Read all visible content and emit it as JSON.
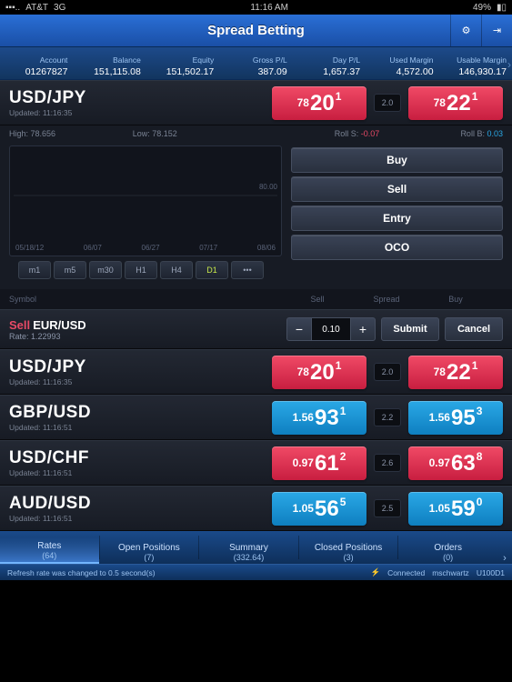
{
  "status": {
    "carrier": "AT&T",
    "net": "3G",
    "time": "11:16 AM",
    "battery": "49%"
  },
  "header": {
    "title": "Spread Betting"
  },
  "account": {
    "cols": [
      {
        "label": "Account",
        "value": "01267827"
      },
      {
        "label": "Balance",
        "value": "151,115.08"
      },
      {
        "label": "Equity",
        "value": "151,502.17"
      },
      {
        "label": "Gross P/L",
        "value": "387.09"
      },
      {
        "label": "Day P/L",
        "value": "1,657.37"
      },
      {
        "label": "Used Margin",
        "value": "4,572.00"
      },
      {
        "label": "Usable Margin",
        "value": "146,930.17"
      }
    ]
  },
  "featured": {
    "symbol": "USD/JPY",
    "updated": "Updated: 11:16:35",
    "sell": {
      "small": "78",
      "large": "20",
      "sup": "1",
      "color": "red"
    },
    "spread": "2.0",
    "buy": {
      "small": "78",
      "large": "22",
      "sup": "1",
      "color": "red"
    },
    "high": "High: 78.656",
    "low": "Low: 78.152",
    "rollS": "-0.07",
    "rollSLabel": "Roll S:",
    "rollB": "0.03",
    "rollBLabel": "Roll B:",
    "sideLabel": "80.00",
    "dates": [
      "05/18/12",
      "06/07",
      "06/27",
      "07/17",
      "08/06"
    ],
    "timeframes": [
      "m1",
      "m5",
      "m30",
      "H1",
      "H4",
      "D1",
      "•••"
    ],
    "tfActive": 5,
    "actions": [
      "Buy",
      "Sell",
      "Entry",
      "OCO"
    ],
    "candles": [
      {
        "x": 4,
        "wT": 10,
        "wH": 55,
        "bT": 15,
        "bH": 35,
        "c": "pink"
      },
      {
        "x": 9,
        "wT": 15,
        "wH": 50,
        "bT": 20,
        "bH": 20,
        "c": "blue"
      },
      {
        "x": 14,
        "wT": 8,
        "wH": 60,
        "bT": 12,
        "bH": 40,
        "c": "pink"
      },
      {
        "x": 19,
        "wT": 12,
        "wH": 45,
        "bT": 18,
        "bH": 25,
        "c": "pink"
      },
      {
        "x": 24,
        "wT": 5,
        "wH": 55,
        "bT": 10,
        "bH": 30,
        "c": "blue"
      },
      {
        "x": 29,
        "wT": 18,
        "wH": 50,
        "bT": 25,
        "bH": 28,
        "c": "pink"
      },
      {
        "x": 34,
        "wT": 22,
        "wH": 55,
        "bT": 30,
        "bH": 35,
        "c": "pink"
      },
      {
        "x": 39,
        "wT": 15,
        "wH": 45,
        "bT": 22,
        "bH": 20,
        "c": "blue"
      },
      {
        "x": 44,
        "wT": 28,
        "wH": 50,
        "bT": 35,
        "bH": 30,
        "c": "pink"
      },
      {
        "x": 49,
        "wT": 20,
        "wH": 48,
        "bT": 28,
        "bH": 22,
        "c": "blue"
      },
      {
        "x": 54,
        "wT": 25,
        "wH": 52,
        "bT": 32,
        "bH": 28,
        "c": "pink"
      },
      {
        "x": 59,
        "wT": 30,
        "wH": 45,
        "bT": 36,
        "bH": 18,
        "c": "blue"
      },
      {
        "x": 64,
        "wT": 35,
        "wH": 50,
        "bT": 42,
        "bH": 30,
        "c": "pink"
      },
      {
        "x": 69,
        "wT": 40,
        "wH": 45,
        "bT": 46,
        "bH": 25,
        "c": "pink"
      },
      {
        "x": 74,
        "wT": 32,
        "wH": 48,
        "bT": 40,
        "bH": 22,
        "c": "blue"
      },
      {
        "x": 79,
        "wT": 38,
        "wH": 44,
        "bT": 44,
        "bH": 20,
        "c": "pink"
      },
      {
        "x": 84,
        "wT": 45,
        "wH": 40,
        "bT": 50,
        "bH": 18,
        "c": "blue"
      },
      {
        "x": 89,
        "wT": 42,
        "wH": 45,
        "bT": 48,
        "bH": 24,
        "c": "pink"
      },
      {
        "x": 94,
        "wT": 50,
        "wH": 38,
        "bT": 55,
        "bH": 16,
        "c": "pink"
      }
    ]
  },
  "listHeader": {
    "symbol": "Symbol",
    "sell": "Sell",
    "spread": "Spread",
    "buy": "Buy"
  },
  "order": {
    "side": "Sell",
    "symbol": "EUR/USD",
    "rateLabel": "Rate:",
    "rate": "1.22993",
    "qty": "0.10",
    "submit": "Submit",
    "cancel": "Cancel"
  },
  "rows": [
    {
      "symbol": "USD/JPY",
      "updated": "Updated: 11:16:35",
      "sell": {
        "small": "78",
        "large": "20",
        "sup": "1"
      },
      "spread": "2.0",
      "buy": {
        "small": "78",
        "large": "22",
        "sup": "1"
      },
      "color": "red"
    },
    {
      "symbol": "GBP/USD",
      "updated": "Updated: 11:16:51",
      "sell": {
        "small": "1.56",
        "large": "93",
        "sup": "1"
      },
      "spread": "2.2",
      "buy": {
        "small": "1.56",
        "large": "95",
        "sup": "3"
      },
      "color": "blue"
    },
    {
      "symbol": "USD/CHF",
      "updated": "Updated: 11:16:51",
      "sell": {
        "small": "0.97",
        "large": "61",
        "sup": "2"
      },
      "spread": "2.6",
      "buy": {
        "small": "0.97",
        "large": "63",
        "sup": "8"
      },
      "color": "red"
    },
    {
      "symbol": "AUD/USD",
      "updated": "Updated: 11:16:51",
      "sell": {
        "small": "1.05",
        "large": "56",
        "sup": "5"
      },
      "spread": "2.5",
      "buy": {
        "small": "1.05",
        "large": "59",
        "sup": "0"
      },
      "color": "blue"
    }
  ],
  "tabs": [
    {
      "label": "Rates",
      "count": "(64)",
      "active": true
    },
    {
      "label": "Open Positions",
      "count": "(7)"
    },
    {
      "label": "Summary",
      "count": "(332.64)"
    },
    {
      "label": "Closed Positions",
      "count": "(3)"
    },
    {
      "label": "Orders",
      "count": "(0)"
    }
  ],
  "bottom": {
    "msg": "Refresh rate was changed to 0.5 second(s)",
    "conn": "Connected",
    "user": "mschwartz",
    "server": "U100D1"
  }
}
